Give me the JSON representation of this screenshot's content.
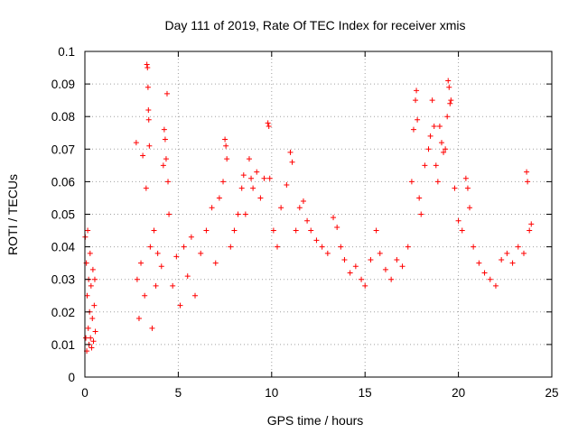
{
  "chart_data": {
    "type": "scatter",
    "title": "Day 111 of 2019, Rate Of TEC Index for receiver xmis",
    "xlabel": "GPS time / hours",
    "ylabel": "ROTI / TECUs",
    "xlim": [
      0,
      25
    ],
    "ylim": [
      0,
      0.1
    ],
    "x_ticks": [
      0,
      5,
      10,
      15,
      20,
      25
    ],
    "x_tick_labels": [
      "0",
      "5",
      "10",
      "15",
      "20",
      "25"
    ],
    "y_ticks": [
      0,
      0.01,
      0.02,
      0.03,
      0.04,
      0.05,
      0.06,
      0.07,
      0.08,
      0.09,
      0.1
    ],
    "y_tick_labels": [
      "0",
      "0.01",
      "0.02",
      "0.03",
      "0.04",
      "0.05",
      "0.06",
      "0.07",
      "0.08",
      "0.09",
      "0.1"
    ],
    "grid": true,
    "marker": "plus",
    "color": "#ff0000",
    "series": [
      {
        "name": "ROTI",
        "data_gaps_hours": [
          [
            0.6,
            2.7
          ]
        ],
        "points": [
          [
            0.02,
            0.043
          ],
          [
            0.05,
            0.012
          ],
          [
            0.08,
            0.035
          ],
          [
            0.1,
            0.008
          ],
          [
            0.12,
            0.025
          ],
          [
            0.15,
            0.045
          ],
          [
            0.18,
            0.015
          ],
          [
            0.2,
            0.03
          ],
          [
            0.22,
            0.01
          ],
          [
            0.25,
            0.02
          ],
          [
            0.28,
            0.038
          ],
          [
            0.3,
            0.012
          ],
          [
            0.33,
            0.028
          ],
          [
            0.36,
            0.009
          ],
          [
            0.4,
            0.018
          ],
          [
            0.43,
            0.033
          ],
          [
            0.46,
            0.011
          ],
          [
            0.5,
            0.022
          ],
          [
            0.53,
            0.03
          ],
          [
            0.56,
            0.014
          ],
          [
            2.75,
            0.072
          ],
          [
            2.8,
            0.03
          ],
          [
            2.9,
            0.018
          ],
          [
            3.0,
            0.035
          ],
          [
            3.1,
            0.068
          ],
          [
            3.2,
            0.025
          ],
          [
            3.28,
            0.058
          ],
          [
            3.32,
            0.096
          ],
          [
            3.35,
            0.095
          ],
          [
            3.38,
            0.089
          ],
          [
            3.4,
            0.082
          ],
          [
            3.42,
            0.079
          ],
          [
            3.45,
            0.071
          ],
          [
            3.5,
            0.04
          ],
          [
            3.6,
            0.015
          ],
          [
            3.7,
            0.045
          ],
          [
            3.8,
            0.028
          ],
          [
            3.9,
            0.038
          ],
          [
            4.1,
            0.034
          ],
          [
            4.2,
            0.065
          ],
          [
            4.25,
            0.076
          ],
          [
            4.3,
            0.073
          ],
          [
            4.35,
            0.067
          ],
          [
            4.4,
            0.087
          ],
          [
            4.45,
            0.06
          ],
          [
            4.5,
            0.05
          ],
          [
            4.7,
            0.028
          ],
          [
            4.9,
            0.037
          ],
          [
            5.1,
            0.022
          ],
          [
            5.3,
            0.04
          ],
          [
            5.5,
            0.031
          ],
          [
            5.7,
            0.043
          ],
          [
            5.9,
            0.025
          ],
          [
            6.2,
            0.038
          ],
          [
            6.5,
            0.045
          ],
          [
            6.8,
            0.052
          ],
          [
            7.0,
            0.035
          ],
          [
            7.2,
            0.055
          ],
          [
            7.4,
            0.06
          ],
          [
            7.5,
            0.073
          ],
          [
            7.55,
            0.071
          ],
          [
            7.6,
            0.067
          ],
          [
            7.8,
            0.04
          ],
          [
            8.0,
            0.045
          ],
          [
            8.2,
            0.05
          ],
          [
            8.4,
            0.058
          ],
          [
            8.5,
            0.062
          ],
          [
            8.6,
            0.05
          ],
          [
            8.8,
            0.067
          ],
          [
            8.9,
            0.061
          ],
          [
            9.0,
            0.058
          ],
          [
            9.2,
            0.063
          ],
          [
            9.4,
            0.055
          ],
          [
            9.6,
            0.061
          ],
          [
            9.8,
            0.078
          ],
          [
            9.85,
            0.077
          ],
          [
            9.9,
            0.061
          ],
          [
            10.1,
            0.045
          ],
          [
            10.3,
            0.04
          ],
          [
            10.5,
            0.052
          ],
          [
            10.8,
            0.059
          ],
          [
            11.0,
            0.069
          ],
          [
            11.1,
            0.066
          ],
          [
            11.3,
            0.045
          ],
          [
            11.5,
            0.052
          ],
          [
            11.7,
            0.054
          ],
          [
            11.9,
            0.048
          ],
          [
            12.1,
            0.045
          ],
          [
            12.4,
            0.042
          ],
          [
            12.7,
            0.04
          ],
          [
            13.0,
            0.038
          ],
          [
            13.3,
            0.049
          ],
          [
            13.5,
            0.046
          ],
          [
            13.7,
            0.04
          ],
          [
            13.9,
            0.036
          ],
          [
            14.2,
            0.032
          ],
          [
            14.5,
            0.034
          ],
          [
            14.8,
            0.03
          ],
          [
            15.0,
            0.028
          ],
          [
            15.3,
            0.036
          ],
          [
            15.6,
            0.045
          ],
          [
            15.8,
            0.038
          ],
          [
            16.1,
            0.033
          ],
          [
            16.4,
            0.03
          ],
          [
            16.7,
            0.036
          ],
          [
            17.0,
            0.034
          ],
          [
            17.3,
            0.04
          ],
          [
            17.5,
            0.06
          ],
          [
            17.6,
            0.076
          ],
          [
            17.7,
            0.085
          ],
          [
            17.75,
            0.088
          ],
          [
            17.8,
            0.079
          ],
          [
            17.9,
            0.055
          ],
          [
            18.0,
            0.05
          ],
          [
            18.2,
            0.065
          ],
          [
            18.4,
            0.07
          ],
          [
            18.5,
            0.074
          ],
          [
            18.6,
            0.085
          ],
          [
            18.7,
            0.077
          ],
          [
            18.8,
            0.065
          ],
          [
            18.9,
            0.06
          ],
          [
            19.0,
            0.077
          ],
          [
            19.1,
            0.072
          ],
          [
            19.2,
            0.069
          ],
          [
            19.3,
            0.07
          ],
          [
            19.4,
            0.08
          ],
          [
            19.45,
            0.091
          ],
          [
            19.5,
            0.089
          ],
          [
            19.55,
            0.084
          ],
          [
            19.6,
            0.085
          ],
          [
            19.8,
            0.058
          ],
          [
            20.0,
            0.048
          ],
          [
            20.2,
            0.045
          ],
          [
            20.4,
            0.061
          ],
          [
            20.5,
            0.058
          ],
          [
            20.6,
            0.052
          ],
          [
            20.8,
            0.04
          ],
          [
            21.1,
            0.035
          ],
          [
            21.4,
            0.032
          ],
          [
            21.7,
            0.03
          ],
          [
            22.0,
            0.028
          ],
          [
            22.3,
            0.036
          ],
          [
            22.6,
            0.038
          ],
          [
            22.9,
            0.035
          ],
          [
            23.2,
            0.04
          ],
          [
            23.5,
            0.038
          ],
          [
            23.65,
            0.063
          ],
          [
            23.7,
            0.06
          ],
          [
            23.8,
            0.045
          ],
          [
            23.9,
            0.047
          ]
        ]
      }
    ]
  }
}
